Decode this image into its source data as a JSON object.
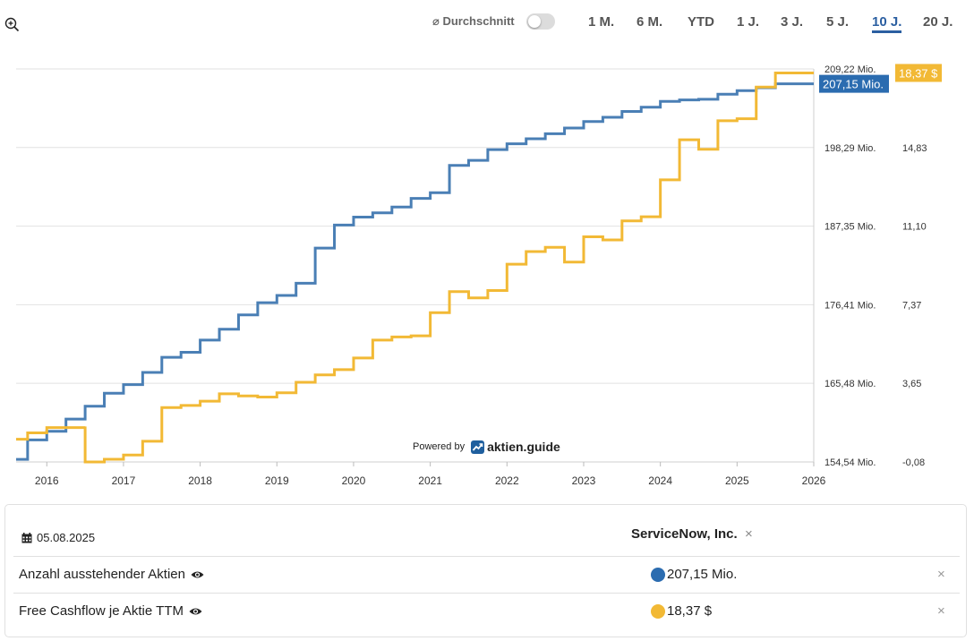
{
  "toolbar": {
    "average_label": "⌀ Durchschnitt",
    "ranges": [
      "1 M.",
      "6 M.",
      "YTD",
      "1 J.",
      "3 J.",
      "5 J.",
      "10 J.",
      "20 J."
    ],
    "active_range": "10 J."
  },
  "powered_by": {
    "text": "Powered by",
    "brand": "aktien.guide"
  },
  "chart_data": {
    "type": "line",
    "x_ticks": [
      "2016",
      "2017",
      "2018",
      "2019",
      "2020",
      "2021",
      "2022",
      "2023",
      "2024",
      "2025",
      "2026"
    ],
    "xlim": [
      2015.6,
      2026.0
    ],
    "y_left": {
      "ticks": [
        154.54,
        165.48,
        176.41,
        187.35,
        198.29,
        209.22
      ],
      "tick_labels": [
        "154,54 Mio.",
        "165,48 Mio.",
        "176,41 Mio.",
        "187,35 Mio.",
        "198,29 Mio.",
        "209,22 Mio."
      ],
      "ylim": [
        154.54,
        209.22
      ]
    },
    "y_right": {
      "ticks": [
        -0.08,
        3.65,
        7.37,
        11.1,
        14.83
      ],
      "tick_labels": [
        "-0,08",
        "3,65",
        "7,37",
        "11,10",
        "14,83"
      ],
      "ylim": [
        -0.08,
        18.56
      ]
    },
    "series": [
      {
        "name": "Anzahl ausstehender Aktien",
        "axis": "left",
        "color": "#4a7fb5",
        "last_label": "207,15 Mio.",
        "points": [
          [
            2015.6,
            154.9
          ],
          [
            2015.75,
            157.6
          ],
          [
            2016.0,
            158.8
          ],
          [
            2016.25,
            160.5
          ],
          [
            2016.5,
            162.3
          ],
          [
            2016.75,
            164.1
          ],
          [
            2017.0,
            165.3
          ],
          [
            2017.25,
            167.0
          ],
          [
            2017.5,
            169.1
          ],
          [
            2017.75,
            169.8
          ],
          [
            2018.0,
            171.5
          ],
          [
            2018.25,
            173.0
          ],
          [
            2018.5,
            175.0
          ],
          [
            2018.75,
            176.7
          ],
          [
            2019.0,
            177.7
          ],
          [
            2019.25,
            179.4
          ],
          [
            2019.5,
            184.3
          ],
          [
            2019.75,
            187.5
          ],
          [
            2020.0,
            188.6
          ],
          [
            2020.25,
            189.2
          ],
          [
            2020.5,
            190.0
          ],
          [
            2020.75,
            191.2
          ],
          [
            2021.0,
            192.0
          ],
          [
            2021.25,
            195.8
          ],
          [
            2021.5,
            196.5
          ],
          [
            2021.75,
            198.0
          ],
          [
            2022.0,
            198.8
          ],
          [
            2022.25,
            199.5
          ],
          [
            2022.5,
            200.2
          ],
          [
            2022.75,
            201.0
          ],
          [
            2023.0,
            201.9
          ],
          [
            2023.25,
            202.5
          ],
          [
            2023.5,
            203.3
          ],
          [
            2023.75,
            203.9
          ],
          [
            2024.0,
            204.7
          ],
          [
            2024.25,
            204.9
          ],
          [
            2024.5,
            205.0
          ],
          [
            2024.75,
            205.7
          ],
          [
            2025.0,
            206.2
          ],
          [
            2025.25,
            206.6
          ],
          [
            2025.5,
            207.15
          ],
          [
            2025.75,
            207.15
          ]
        ]
      },
      {
        "name": "Free Cashflow je Aktie TTM",
        "axis": "right",
        "color": "#f2b935",
        "last_label": "18,37 $",
        "points": [
          [
            2015.6,
            1.0
          ],
          [
            2015.75,
            1.3
          ],
          [
            2016.0,
            1.55
          ],
          [
            2016.5,
            1.6
          ],
          [
            2016.5,
            -0.08
          ],
          [
            2016.75,
            0.05
          ],
          [
            2017.0,
            0.25
          ],
          [
            2017.25,
            0.9
          ],
          [
            2017.5,
            2.5
          ],
          [
            2017.75,
            2.6
          ],
          [
            2018.0,
            2.8
          ],
          [
            2018.25,
            3.15
          ],
          [
            2018.5,
            3.05
          ],
          [
            2018.75,
            3.0
          ],
          [
            2019.0,
            3.2
          ],
          [
            2019.25,
            3.7
          ],
          [
            2019.5,
            4.05
          ],
          [
            2019.75,
            4.3
          ],
          [
            2020.0,
            4.85
          ],
          [
            2020.25,
            5.7
          ],
          [
            2020.5,
            5.85
          ],
          [
            2020.75,
            5.9
          ],
          [
            2021.0,
            7.0
          ],
          [
            2021.25,
            8.0
          ],
          [
            2021.5,
            7.7
          ],
          [
            2021.75,
            8.05
          ],
          [
            2022.0,
            9.3
          ],
          [
            2022.25,
            9.9
          ],
          [
            2022.5,
            10.1
          ],
          [
            2022.75,
            9.4
          ],
          [
            2023.0,
            10.6
          ],
          [
            2023.25,
            10.45
          ],
          [
            2023.5,
            11.35
          ],
          [
            2023.75,
            11.55
          ],
          [
            2024.0,
            13.3
          ],
          [
            2024.25,
            15.2
          ],
          [
            2024.5,
            14.75
          ],
          [
            2024.75,
            16.1
          ],
          [
            2025.0,
            16.2
          ],
          [
            2025.25,
            17.7
          ],
          [
            2025.5,
            18.37
          ],
          [
            2025.75,
            18.37
          ]
        ]
      }
    ]
  },
  "info": {
    "date": "05.08.2025",
    "company": "ServiceNow, Inc.",
    "close": "×",
    "rows": [
      {
        "label": "Anzahl ausstehender Aktien",
        "value": "207,15 Mio.",
        "color": "#2b6cb0",
        "close": "×"
      },
      {
        "label": "Free Cashflow je Aktie TTM",
        "value": "18,37 $",
        "color": "#f2b935",
        "close": "×"
      }
    ]
  }
}
